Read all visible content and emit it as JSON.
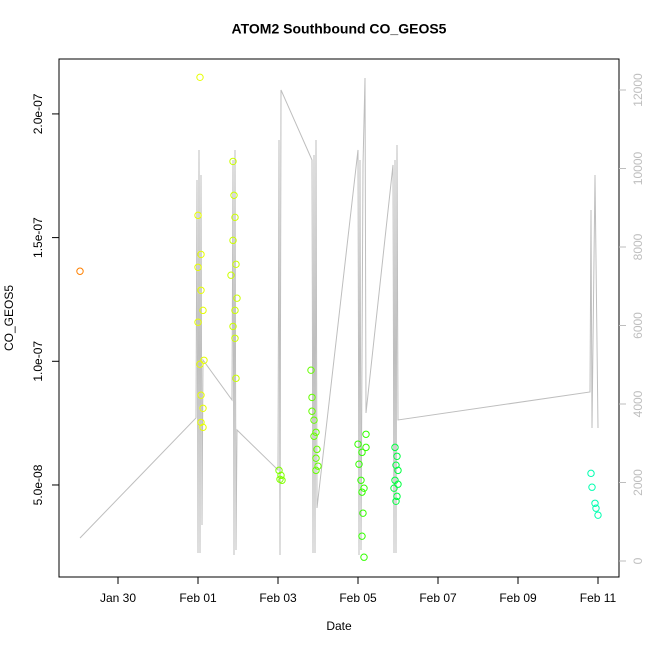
{
  "chart_data": {
    "type": "scatter",
    "title": "ATOM2 Southbound CO_GEOS5",
    "xlabel": "Date",
    "ylabel": "CO_GEOS5",
    "xlim": [
      28.525,
      42.525
    ],
    "ylim": [
      1.28e-08,
      2.222e-07
    ],
    "y2lim": [
      -408,
      12790
    ],
    "xticks": [
      {
        "value": 30,
        "label": "Jan 30"
      },
      {
        "value": 32,
        "label": "Feb 01"
      },
      {
        "value": 34,
        "label": "Feb 03"
      },
      {
        "value": 36,
        "label": "Feb 05"
      },
      {
        "value": 38,
        "label": "Feb 07"
      },
      {
        "value": 40,
        "label": "Feb 09"
      },
      {
        "value": 42,
        "label": "Feb 11"
      }
    ],
    "yticks": [
      {
        "value": 5e-08,
        "label": "5.0e-08"
      },
      {
        "value": 1e-07,
        "label": "1.0e-07"
      },
      {
        "value": 1.5e-07,
        "label": "1.5e-07"
      },
      {
        "value": 2e-07,
        "label": "2.0e-07"
      }
    ],
    "y2ticks": [
      0,
      2000,
      4000,
      6000,
      8000,
      10000,
      12000
    ],
    "y2color": "#bebebe",
    "series": [
      {
        "type": "line",
        "axis": "y2",
        "color": "#bebebe",
        "x": [
          29.05,
          31.95,
          31.975,
          32.0,
          32.025,
          32.05,
          32.075,
          32.1,
          32.125,
          32.85,
          32.875,
          32.9,
          32.925,
          32.95,
          32.975,
          34.0,
          34.025,
          34.05,
          34.075,
          34.85,
          34.875,
          34.9,
          34.925,
          34.95,
          34.975,
          36.0,
          36.025,
          36.05,
          36.075,
          36.125,
          36.175,
          36.2,
          36.875,
          36.9,
          36.925,
          36.95,
          36.975,
          37.0,
          41.8,
          41.825,
          41.85,
          41.925,
          42.0
        ],
        "values": [
          586,
          3644,
          9708,
          204,
          10472,
          204,
          9835,
          917,
          5121,
          4102,
          10217,
          153,
          10472,
          280,
          3338,
          2319,
          10727,
          153,
          12001,
          10217,
          204,
          10345,
          204,
          10727,
          1350,
          10472,
          153,
          10217,
          280,
          10090,
          12307,
          3771,
          10090,
          204,
          10217,
          204,
          10600,
          3593,
          4306,
          8943,
          3389,
          9835,
          3389
        ]
      },
      {
        "type": "scatter",
        "x": [
          29.05,
          32.05,
          32.0,
          32.075,
          32.0,
          32.075,
          32.125,
          32.0,
          32.05,
          32.15,
          32.075,
          32.125,
          32.075,
          32.125,
          32.875,
          32.9,
          32.925,
          32.875,
          32.95,
          32.825,
          32.975,
          32.925,
          32.875,
          32.925,
          32.95,
          34.025,
          34.075,
          34.05,
          34.1,
          34.825,
          34.85,
          34.85,
          34.9,
          34.95,
          34.9,
          34.975,
          34.95,
          35.0,
          34.95,
          36.0,
          36.1,
          36.2,
          36.025,
          36.075,
          36.15,
          36.1,
          36.125,
          36.1,
          36.15,
          36.2,
          36.925,
          36.975,
          36.95,
          37.0,
          36.925,
          37.0,
          36.9,
          36.975,
          36.95,
          41.825,
          41.85,
          41.925,
          41.95,
          42.0
        ],
        "values": [
          1.364e-07,
          2.148e-07,
          1.59e-07,
          1.432e-07,
          1.38e-07,
          1.287e-07,
          1.206e-07,
          1.158e-07,
          9.88e-08,
          1.004e-07,
          8.63e-08,
          8.1e-08,
          7.53e-08,
          7.33e-08,
          1.808e-07,
          1.671e-07,
          1.582e-07,
          1.489e-07,
          1.392e-07,
          1.348e-07,
          1.255e-07,
          1.206e-07,
          1.141e-07,
          1.093e-07,
          9.31e-08,
          5.59e-08,
          5.39e-08,
          5.23e-08,
          5.19e-08,
          9.64e-08,
          8.54e-08,
          7.98e-08,
          7.62e-08,
          7.13e-08,
          6.97e-08,
          6.44e-08,
          6.08e-08,
          5.76e-08,
          5.59e-08,
          6.65e-08,
          6.32e-08,
          6.52e-08,
          5.84e-08,
          5.19e-08,
          4.87e-08,
          4.71e-08,
          3.86e-08,
          2.93e-08,
          2.08e-08,
          7.05e-08,
          6.52e-08,
          6.16e-08,
          5.8e-08,
          5.59e-08,
          5.19e-08,
          5.03e-08,
          4.87e-08,
          4.54e-08,
          4.34e-08,
          5.47e-08,
          4.91e-08,
          4.26e-08,
          4.06e-08,
          3.78e-08
        ],
        "colors": [
          "#ff8000",
          "#e6ff00",
          "#e6ff00",
          "#e6ff00",
          "#e6ff00",
          "#e6ff00",
          "#e6ff00",
          "#e6ff00",
          "#e6ff00",
          "#e6ff00",
          "#e6ff00",
          "#e6ff00",
          "#e6ff00",
          "#e6ff00",
          "#ccff00",
          "#ccff00",
          "#ccff00",
          "#ccff00",
          "#ccff00",
          "#ccff00",
          "#ccff00",
          "#ccff00",
          "#ccff00",
          "#ccff00",
          "#ccff00",
          "#80ff00",
          "#80ff00",
          "#80ff00",
          "#80ff00",
          "#66ff00",
          "#66ff00",
          "#66ff00",
          "#66ff00",
          "#66ff00",
          "#66ff00",
          "#66ff00",
          "#66ff00",
          "#66ff00",
          "#66ff00",
          "#33ff00",
          "#33ff00",
          "#33ff00",
          "#33ff00",
          "#33ff00",
          "#33ff00",
          "#33ff00",
          "#33ff00",
          "#33ff00",
          "#33ff00",
          "#33ff00",
          "#00ff40",
          "#00ff40",
          "#00ff40",
          "#00ff40",
          "#00ff40",
          "#00ff40",
          "#00ff40",
          "#00ff40",
          "#00ff40",
          "#00ffb0",
          "#00ffb0",
          "#00ffb0",
          "#00ffb0",
          "#00ffb0"
        ]
      }
    ]
  }
}
